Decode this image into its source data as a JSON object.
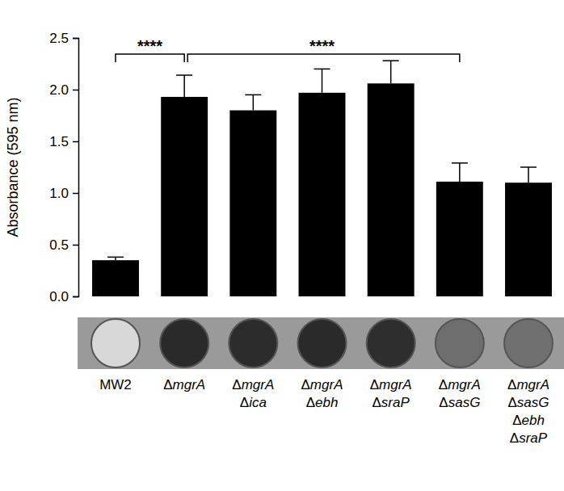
{
  "chart_data": {
    "type": "bar",
    "y_label": "Absorbance (595 nm)",
    "categories": [
      "MW2",
      "ΔmgrA",
      "ΔmgrA Δica",
      "ΔmgrA Δebh",
      "ΔmgrA ΔsraP",
      "ΔmgrA ΔsasG",
      "ΔmgrA ΔsasG Δebh ΔsraP"
    ],
    "values": [
      0.35,
      1.93,
      1.8,
      1.97,
      2.06,
      1.11,
      1.1
    ],
    "errors": [
      0.03,
      0.21,
      0.15,
      0.23,
      0.22,
      0.18,
      0.15
    ],
    "color": "#000000",
    "ylim": [
      0,
      2.5
    ],
    "yticks": [
      {
        "value": 0,
        "label": "0.0"
      },
      0.5,
      {
        "value": 1,
        "label": "1.0"
      },
      1.5,
      {
        "value": 2,
        "label": "2.0"
      },
      2.5
    ],
    "grid": false,
    "annotations": [
      {
        "text": "****",
        "from": 0,
        "to": 1
      },
      {
        "text": "****",
        "from": 1,
        "to": 5
      }
    ]
  }
}
